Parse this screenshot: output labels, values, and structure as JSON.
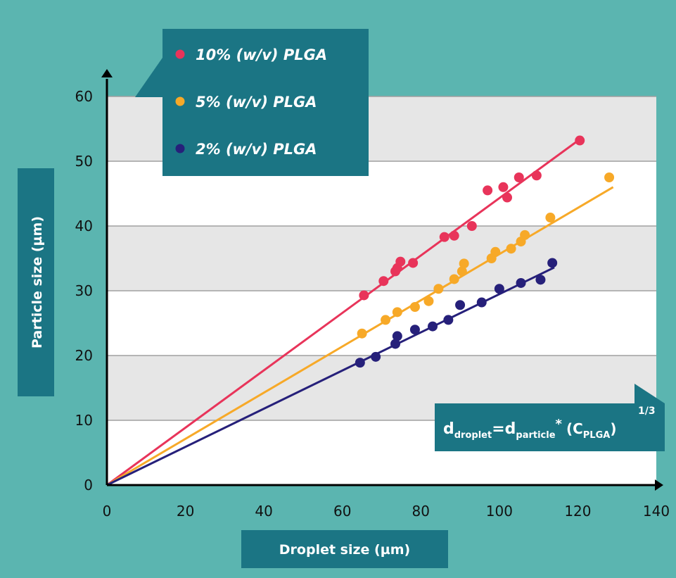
{
  "colors": {
    "background": "#5bb5b0",
    "panel": "#1b7584",
    "band_light": "#ffffff",
    "band_gray": "#e6e6e6",
    "grid": "#a0a0a0",
    "axis": "#000000"
  },
  "chart_data": {
    "type": "scatter",
    "xlabel": "Droplet size (µm)",
    "ylabel": "Particle size (µm)",
    "xlim": [
      0,
      140
    ],
    "ylim": [
      0,
      60
    ],
    "xticks": [
      "0",
      "20",
      "40",
      "60",
      "80",
      "100",
      "120",
      "140"
    ],
    "yticks": [
      "0",
      "10",
      "20",
      "30",
      "40",
      "50",
      "60"
    ],
    "grid": "horizontal, alternating bands",
    "legend_position": "top-left",
    "annotation": {
      "d1": "d",
      "s1": "droplet",
      "eq": "=",
      "d2": "d",
      "s2": "particle",
      "mul": "*",
      "open": "(C",
      "s3": "PLGA",
      "close": ")",
      "exp": "1/3"
    },
    "series": [
      {
        "name": "10% (w/v) PLGA",
        "color": "#e8345a",
        "fit": {
          "x": [
            0,
            121
          ],
          "y": [
            0,
            53.6
          ]
        },
        "points": [
          [
            65.5,
            29.3
          ],
          [
            70.5,
            31.5
          ],
          [
            73.5,
            33
          ],
          [
            74,
            33.5
          ],
          [
            74.8,
            34.5
          ],
          [
            78,
            34.3
          ],
          [
            86,
            38.3
          ],
          [
            88.5,
            38.5
          ],
          [
            93,
            40
          ],
          [
            97,
            45.5
          ],
          [
            101,
            46
          ],
          [
            102,
            44.4
          ],
          [
            105,
            47.5
          ],
          [
            109.5,
            47.8
          ],
          [
            120.5,
            53.2
          ]
        ]
      },
      {
        "name": "5% (w/v) PLGA",
        "color": "#f7a928",
        "fit": {
          "x": [
            0,
            129
          ],
          "y": [
            0,
            46
          ]
        },
        "points": [
          [
            65,
            23.4
          ],
          [
            71,
            25.5
          ],
          [
            74,
            26.7
          ],
          [
            78.5,
            27.5
          ],
          [
            82,
            28.4
          ],
          [
            84.5,
            30.3
          ],
          [
            88.5,
            31.8
          ],
          [
            90.5,
            33
          ],
          [
            91,
            34.2
          ],
          [
            98,
            35
          ],
          [
            99,
            36
          ],
          [
            103,
            36.5
          ],
          [
            105.5,
            37.6
          ],
          [
            106.5,
            38.6
          ],
          [
            113,
            41.3
          ],
          [
            128,
            47.5
          ]
        ]
      },
      {
        "name": "2% (w/v) PLGA",
        "color": "#26207a",
        "fit": {
          "x": [
            0,
            114
          ],
          "y": [
            0,
            33.6
          ]
        },
        "points": [
          [
            64.5,
            18.9
          ],
          [
            68.5,
            19.8
          ],
          [
            73.5,
            21.8
          ],
          [
            74,
            23
          ],
          [
            78.5,
            24
          ],
          [
            83,
            24.5
          ],
          [
            87,
            25.5
          ],
          [
            90,
            27.8
          ],
          [
            95.5,
            28.2
          ],
          [
            100,
            30.3
          ],
          [
            105.5,
            31.2
          ],
          [
            110.5,
            31.7
          ],
          [
            113.5,
            34.3
          ]
        ]
      }
    ]
  }
}
